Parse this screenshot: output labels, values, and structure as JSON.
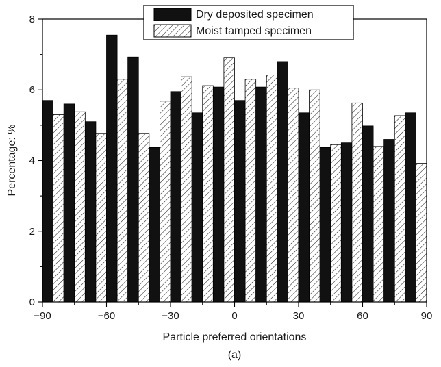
{
  "chart_data": {
    "type": "bar",
    "xlabel": "Particle preferred orientations",
    "ylabel": "Percentage: %",
    "caption": "(a)",
    "xlim": [
      -90,
      90
    ],
    "ylim": [
      0,
      8
    ],
    "x_ticks": [
      "−90",
      "−60",
      "−30",
      "0",
      "30",
      "60",
      "90"
    ],
    "y_ticks": [
      "0",
      "2",
      "4",
      "6",
      "8"
    ],
    "bin_width": 10,
    "bin_centers": [
      -85,
      -75,
      -65,
      -55,
      -45,
      -35,
      -25,
      -15,
      -5,
      5,
      15,
      25,
      35,
      45,
      55,
      65,
      75,
      85
    ],
    "legend_position": "top-center",
    "grid": false,
    "series": [
      {
        "name": "Dry deposited specimen",
        "fill": "#111111",
        "pattern": "solid",
        "values": [
          5.7,
          5.6,
          5.1,
          7.55,
          6.93,
          4.37,
          5.95,
          5.35,
          6.08,
          5.7,
          6.08,
          6.8,
          5.35,
          4.37,
          4.5,
          4.98,
          4.6,
          5.35
        ]
      },
      {
        "name": "Moist tamped specimen",
        "fill": "#ffffff",
        "pattern": "hatched",
        "values": [
          5.3,
          5.38,
          4.77,
          6.3,
          4.77,
          5.68,
          6.37,
          6.12,
          6.92,
          6.3,
          6.42,
          6.05,
          6.0,
          4.45,
          5.63,
          4.4,
          5.27,
          3.92
        ]
      }
    ]
  }
}
